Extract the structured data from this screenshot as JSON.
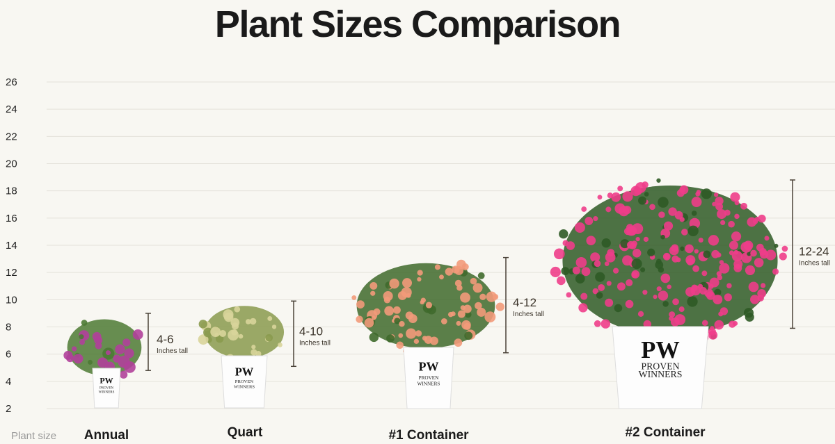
{
  "title": "Plant Sizes Comparison",
  "chart_data": {
    "type": "bar",
    "title": "Plant Sizes Comparison",
    "xlabel": "Plant size",
    "ylabel": "",
    "ylim": [
      2,
      26
    ],
    "yticks": [
      2,
      4,
      6,
      8,
      10,
      12,
      14,
      16,
      18,
      20,
      22,
      24,
      26
    ],
    "grid": true,
    "categories": [
      "Annual",
      "Quart",
      "#1 Container",
      "#2 Container"
    ],
    "ranges": [
      {
        "label": "4-6",
        "unit": "Inches tall",
        "top": 9,
        "bottom": 4.8,
        "flower": "#b0409a",
        "leaf": "#4d7a34"
      },
      {
        "label": "4-10",
        "unit": "Inches tall",
        "top": 9.9,
        "bottom": 5.1,
        "flower": "#d8d49a",
        "leaf": "#8a9a4e"
      },
      {
        "label": "4-12",
        "unit": "Inches tall",
        "top": 13.1,
        "bottom": 6.1,
        "flower": "#f29a7a",
        "leaf": "#3f6a2c"
      },
      {
        "label": "12-24",
        "unit": "Inches tall",
        "top": 18.8,
        "bottom": 7.9,
        "flower": "#ee3d8a",
        "leaf": "#2f5a26"
      }
    ],
    "pot_brand": [
      "PROVEN",
      "WINNERS"
    ]
  }
}
